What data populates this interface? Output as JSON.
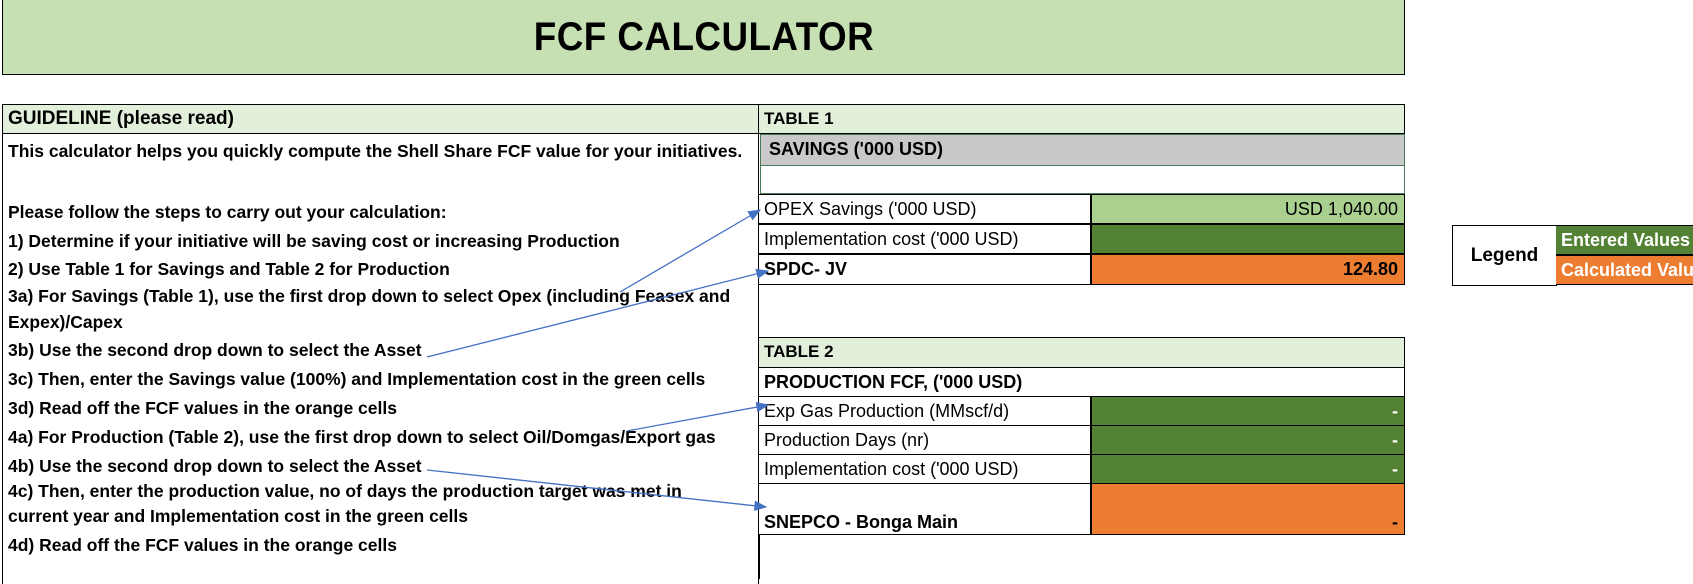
{
  "title": "FCF CALCULATOR",
  "guideline": {
    "heading": "GUIDELINE (please read)",
    "lines": [
      "This calculator helps you quickly compute the Shell Share FCF value for your initiatives.",
      "Please follow the steps to carry out your calculation:",
      "1) Determine if your initiative will be saving cost or increasing Production",
      "2) Use Table 1 for Savings and Table 2 for Production",
      "3a) For Savings (Table 1), use the first drop down to select Opex (including Feasex and",
      "Expex)/Capex",
      "3b) Use the second drop down to select the Asset",
      "3c) Then, enter the Savings value (100%) and Implementation cost in the green cells",
      "3d) Read off the FCF values in the orange cells",
      "4a) For Production (Table 2), use the first drop down to select Oil/Domgas/Export gas",
      "4b) Use the second drop down to select the Asset",
      "4c) Then, enter the production value, no of days the production target was met in",
      "current year and Implementation cost in the green cells",
      "4d) Read off the FCF values in the orange cells"
    ]
  },
  "table1": {
    "heading": "TABLE 1",
    "subheading": "SAVINGS ('000 USD)",
    "rows": [
      {
        "label": "OPEX Savings ('000 USD)",
        "value": "USD 1,040.00"
      },
      {
        "label": "Implementation cost ('000 USD)",
        "value": ""
      },
      {
        "label": "SPDC- JV",
        "value": "124.80"
      }
    ]
  },
  "table2": {
    "heading": "TABLE 2",
    "subheading": "PRODUCTION FCF, ('000 USD)",
    "rows": [
      {
        "label": "Exp Gas Production (MMscf/d)",
        "value": "-"
      },
      {
        "label": "Production Days (nr)",
        "value": "-"
      },
      {
        "label": "Implementation cost ('000 USD)",
        "value": "-"
      },
      {
        "label": "SNEPCO - Bonga Main",
        "value": "-"
      }
    ]
  },
  "legend": {
    "label": "Legend",
    "entered": "Entered Values",
    "calculated": "Calculated Values"
  },
  "colors": {
    "title_bg": "#c6e0b4",
    "entered": "#548235",
    "calculated": "#ed7d31",
    "input_light": "#a9d08e",
    "arrow": "#4472c4"
  }
}
